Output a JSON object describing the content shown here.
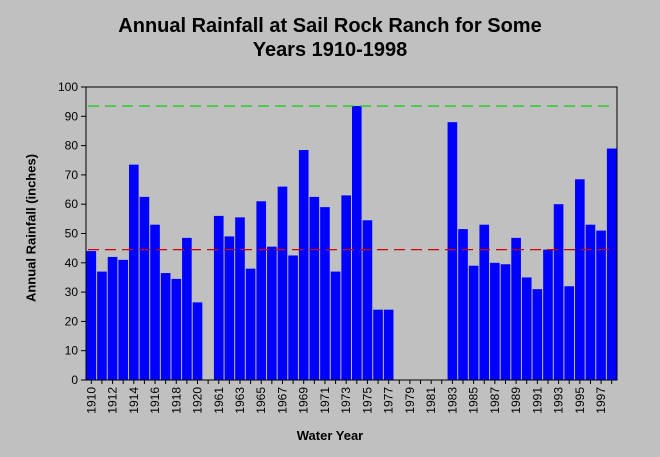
{
  "chart_data": {
    "type": "bar",
    "title_lines": [
      "Annual Rainfall at Sail Rock Ranch for Some",
      "Years 1910-1998"
    ],
    "xlabel": "Water Year",
    "ylabel": "Annual Rainfall (inches)",
    "ylim": [
      0,
      100
    ],
    "yticks": [
      0,
      10,
      20,
      30,
      40,
      50,
      60,
      70,
      80,
      90,
      100
    ],
    "categories": [
      "1910",
      "1911",
      "1912",
      "1913",
      "1914",
      "1915",
      "1916",
      "1917",
      "1918",
      "1919",
      "1920",
      "1960",
      "1961",
      "1962",
      "1963",
      "1964",
      "1965",
      "1966",
      "1967",
      "1968",
      "1969",
      "1970",
      "1971",
      "1972",
      "1973",
      "1974",
      "1975",
      "1976",
      "1977",
      "1978",
      "1979",
      "1980",
      "1981",
      "1982",
      "1983",
      "1984",
      "1985",
      "1986",
      "1987",
      "1988",
      "1989",
      "1990",
      "1991",
      "1992",
      "1993",
      "1994",
      "1995",
      "1996",
      "1997",
      "1998"
    ],
    "tick_labels": [
      "1910",
      "",
      "1912",
      "",
      "1914",
      "",
      "1916",
      "",
      "1918",
      "",
      "1920",
      "",
      "1961",
      "",
      "1963",
      "",
      "1965",
      "",
      "1967",
      "",
      "1969",
      "",
      "1971",
      "",
      "1973",
      "",
      "1975",
      "",
      "1977",
      "",
      "1979",
      "",
      "1981",
      "",
      "1983",
      "",
      "1985",
      "",
      "1987",
      "",
      "1989",
      "",
      "1991",
      "",
      "1993",
      "",
      "1995",
      "",
      "1997",
      ""
    ],
    "values": [
      44,
      37,
      42,
      41,
      73.5,
      62.5,
      53,
      36.5,
      34.5,
      48.5,
      26.5,
      null,
      56,
      49,
      55.5,
      38,
      61,
      45.5,
      66,
      42.5,
      78.5,
      62.5,
      59,
      37,
      63,
      93.5,
      54.5,
      24,
      24,
      null,
      null,
      null,
      null,
      null,
      88,
      51.5,
      39,
      53,
      40,
      39.5,
      48.5,
      35,
      31,
      44.5,
      60,
      32,
      68.5,
      53,
      51,
      79
    ],
    "reference_lines": [
      {
        "value": 93.5,
        "color": "#00cc00",
        "style": "dashed"
      },
      {
        "value": 44.5,
        "color": "#cc0000",
        "style": "dashed"
      }
    ],
    "colors": {
      "bar": "#0000ff",
      "background": "#c0c0c0",
      "plot_bg": "#c0c0c0"
    },
    "grid": false
  }
}
